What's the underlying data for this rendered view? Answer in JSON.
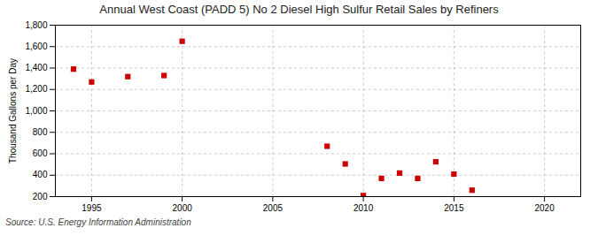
{
  "chart_data": {
    "type": "scatter",
    "title": "Annual West Coast (PADD 5) No 2 Diesel High Sulfur Retail Sales by Refiners",
    "ylabel": "Thousand Gallons per Day",
    "annotations": [
      "Source: U.S. Energy Information Administration"
    ],
    "x": [
      1994,
      1995,
      1997,
      1999,
      2000,
      2008,
      2009,
      2010,
      2011,
      2012,
      2013,
      2014,
      2015,
      2016
    ],
    "values": [
      1390,
      1270,
      1320,
      1330,
      1650,
      670,
      505,
      210,
      370,
      420,
      370,
      525,
      410,
      260
    ],
    "color": "#cc0000",
    "marker": "square",
    "xlim": [
      1993,
      2022
    ],
    "ylim": [
      200,
      1800
    ],
    "xticks": [
      1995,
      2000,
      2005,
      2010,
      2015,
      2020
    ],
    "yticks": [
      200,
      400,
      600,
      800,
      {
        "value": 1000,
        "label": "1,000"
      },
      {
        "value": 1200,
        "label": "1,200"
      },
      {
        "value": 1400,
        "label": "1,400"
      },
      {
        "value": 1600,
        "label": "1,600"
      },
      {
        "value": 1800,
        "label": "1,800"
      }
    ],
    "grid": true
  }
}
